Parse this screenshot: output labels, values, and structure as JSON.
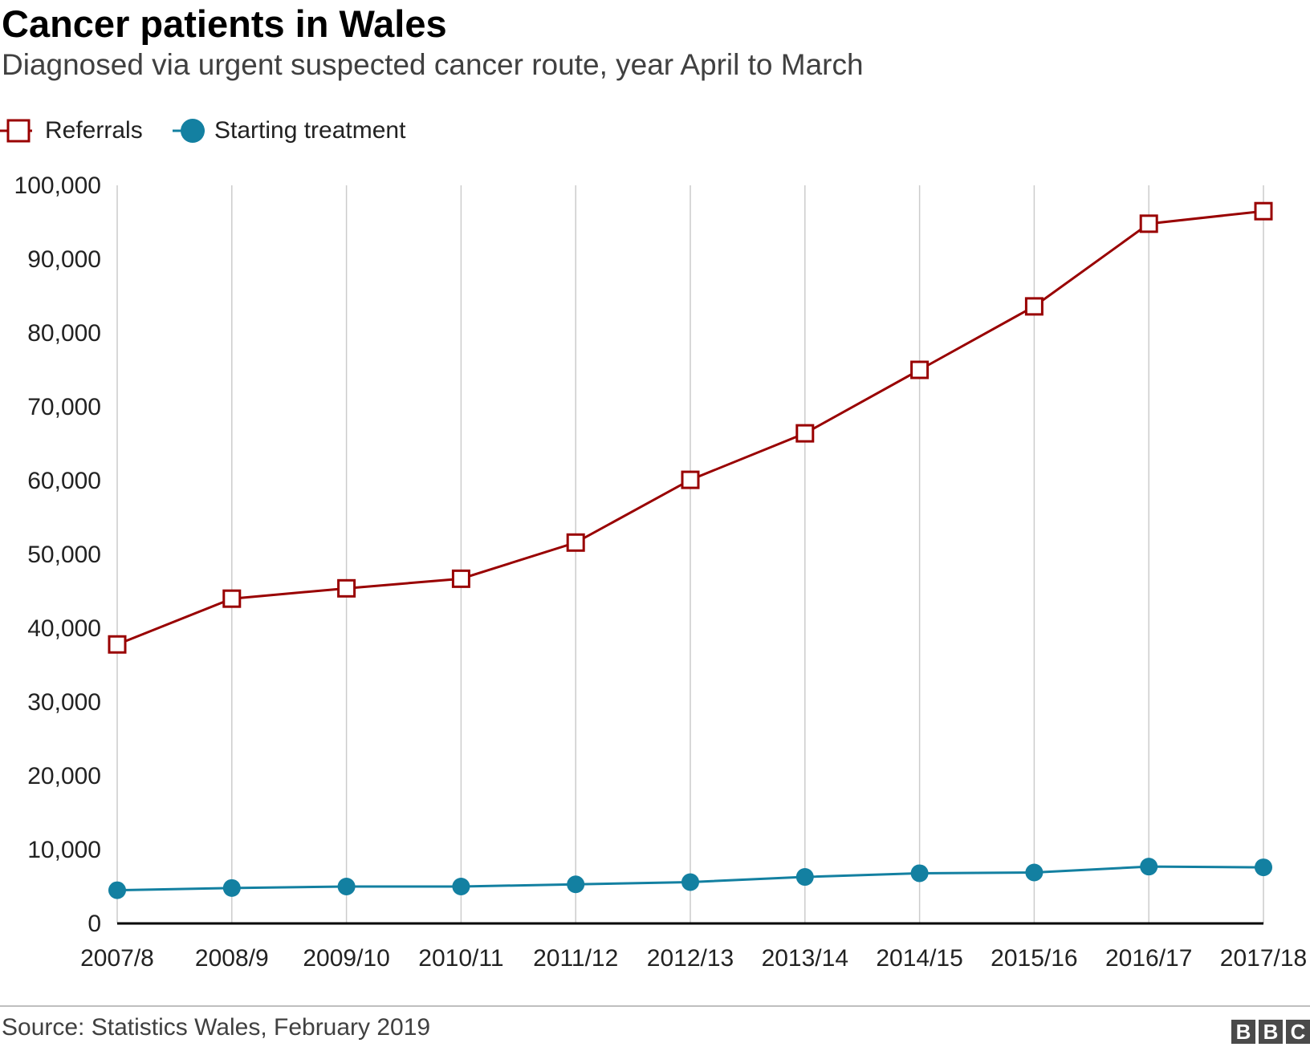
{
  "title": "Cancer patients in Wales",
  "subtitle": "Diagnosed via urgent suspected cancer route, year April to March",
  "source": "Source: Statistics Wales, February 2019",
  "brand": [
    "B",
    "B",
    "C"
  ],
  "colors": {
    "referrals": "#990000",
    "treatment": "#1380a1",
    "grid": "#cccccc",
    "axis": "#000000"
  },
  "chart_data": {
    "type": "line",
    "title": "Cancer patients in Wales",
    "subtitle": "Diagnosed via urgent suspected cancer route, year April to March",
    "xlabel": "",
    "ylabel": "",
    "categories": [
      "2007/8",
      "2008/9",
      "2009/10",
      "2010/11",
      "2011/12",
      "2012/13",
      "2013/14",
      "2014/15",
      "2015/16",
      "2016/17",
      "2017/18"
    ],
    "ylim": [
      0,
      100000
    ],
    "yticks": [
      0,
      10000,
      20000,
      30000,
      40000,
      50000,
      60000,
      70000,
      80000,
      90000,
      100000
    ],
    "ytick_labels": [
      "0",
      "10,000",
      "20,000",
      "30,000",
      "40,000",
      "50,000",
      "60,000",
      "70,000",
      "80,000",
      "90,000",
      "100,000"
    ],
    "grid": "vertical",
    "legend_position": "top-left",
    "series": [
      {
        "name": "Referrals",
        "marker": "open-square",
        "values": [
          37800,
          44000,
          45400,
          46700,
          51600,
          60100,
          66400,
          75000,
          83600,
          94800,
          96500
        ]
      },
      {
        "name": "Starting treatment",
        "marker": "filled-circle",
        "values": [
          4500,
          4800,
          5000,
          5000,
          5300,
          5600,
          6300,
          6800,
          6900,
          7700,
          7600
        ]
      }
    ]
  }
}
